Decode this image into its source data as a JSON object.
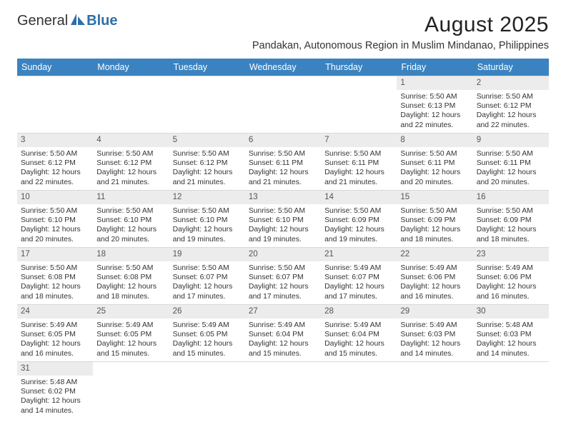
{
  "brand": {
    "part1": "General",
    "part2": "Blue"
  },
  "title": "August 2025",
  "subtitle": "Pandakan, Autonomous Region in Muslim Mindanao, Philippines",
  "colors": {
    "header_bg": "#3b83c0",
    "header_text": "#ffffff",
    "daynum_bg": "#ececec",
    "border": "#d9d9d9",
    "text": "#333333",
    "logo_blue": "#2f6fa8"
  },
  "dow": [
    "Sunday",
    "Monday",
    "Tuesday",
    "Wednesday",
    "Thursday",
    "Friday",
    "Saturday"
  ],
  "weeks": [
    [
      null,
      null,
      null,
      null,
      null,
      {
        "n": "1",
        "sr": "Sunrise: 5:50 AM",
        "ss": "Sunset: 6:13 PM",
        "d1": "Daylight: 12 hours",
        "d2": "and 22 minutes."
      },
      {
        "n": "2",
        "sr": "Sunrise: 5:50 AM",
        "ss": "Sunset: 6:12 PM",
        "d1": "Daylight: 12 hours",
        "d2": "and 22 minutes."
      }
    ],
    [
      {
        "n": "3",
        "sr": "Sunrise: 5:50 AM",
        "ss": "Sunset: 6:12 PM",
        "d1": "Daylight: 12 hours",
        "d2": "and 22 minutes."
      },
      {
        "n": "4",
        "sr": "Sunrise: 5:50 AM",
        "ss": "Sunset: 6:12 PM",
        "d1": "Daylight: 12 hours",
        "d2": "and 21 minutes."
      },
      {
        "n": "5",
        "sr": "Sunrise: 5:50 AM",
        "ss": "Sunset: 6:12 PM",
        "d1": "Daylight: 12 hours",
        "d2": "and 21 minutes."
      },
      {
        "n": "6",
        "sr": "Sunrise: 5:50 AM",
        "ss": "Sunset: 6:11 PM",
        "d1": "Daylight: 12 hours",
        "d2": "and 21 minutes."
      },
      {
        "n": "7",
        "sr": "Sunrise: 5:50 AM",
        "ss": "Sunset: 6:11 PM",
        "d1": "Daylight: 12 hours",
        "d2": "and 21 minutes."
      },
      {
        "n": "8",
        "sr": "Sunrise: 5:50 AM",
        "ss": "Sunset: 6:11 PM",
        "d1": "Daylight: 12 hours",
        "d2": "and 20 minutes."
      },
      {
        "n": "9",
        "sr": "Sunrise: 5:50 AM",
        "ss": "Sunset: 6:11 PM",
        "d1": "Daylight: 12 hours",
        "d2": "and 20 minutes."
      }
    ],
    [
      {
        "n": "10",
        "sr": "Sunrise: 5:50 AM",
        "ss": "Sunset: 6:10 PM",
        "d1": "Daylight: 12 hours",
        "d2": "and 20 minutes."
      },
      {
        "n": "11",
        "sr": "Sunrise: 5:50 AM",
        "ss": "Sunset: 6:10 PM",
        "d1": "Daylight: 12 hours",
        "d2": "and 20 minutes."
      },
      {
        "n": "12",
        "sr": "Sunrise: 5:50 AM",
        "ss": "Sunset: 6:10 PM",
        "d1": "Daylight: 12 hours",
        "d2": "and 19 minutes."
      },
      {
        "n": "13",
        "sr": "Sunrise: 5:50 AM",
        "ss": "Sunset: 6:10 PM",
        "d1": "Daylight: 12 hours",
        "d2": "and 19 minutes."
      },
      {
        "n": "14",
        "sr": "Sunrise: 5:50 AM",
        "ss": "Sunset: 6:09 PM",
        "d1": "Daylight: 12 hours",
        "d2": "and 19 minutes."
      },
      {
        "n": "15",
        "sr": "Sunrise: 5:50 AM",
        "ss": "Sunset: 6:09 PM",
        "d1": "Daylight: 12 hours",
        "d2": "and 18 minutes."
      },
      {
        "n": "16",
        "sr": "Sunrise: 5:50 AM",
        "ss": "Sunset: 6:09 PM",
        "d1": "Daylight: 12 hours",
        "d2": "and 18 minutes."
      }
    ],
    [
      {
        "n": "17",
        "sr": "Sunrise: 5:50 AM",
        "ss": "Sunset: 6:08 PM",
        "d1": "Daylight: 12 hours",
        "d2": "and 18 minutes."
      },
      {
        "n": "18",
        "sr": "Sunrise: 5:50 AM",
        "ss": "Sunset: 6:08 PM",
        "d1": "Daylight: 12 hours",
        "d2": "and 18 minutes."
      },
      {
        "n": "19",
        "sr": "Sunrise: 5:50 AM",
        "ss": "Sunset: 6:07 PM",
        "d1": "Daylight: 12 hours",
        "d2": "and 17 minutes."
      },
      {
        "n": "20",
        "sr": "Sunrise: 5:50 AM",
        "ss": "Sunset: 6:07 PM",
        "d1": "Daylight: 12 hours",
        "d2": "and 17 minutes."
      },
      {
        "n": "21",
        "sr": "Sunrise: 5:49 AM",
        "ss": "Sunset: 6:07 PM",
        "d1": "Daylight: 12 hours",
        "d2": "and 17 minutes."
      },
      {
        "n": "22",
        "sr": "Sunrise: 5:49 AM",
        "ss": "Sunset: 6:06 PM",
        "d1": "Daylight: 12 hours",
        "d2": "and 16 minutes."
      },
      {
        "n": "23",
        "sr": "Sunrise: 5:49 AM",
        "ss": "Sunset: 6:06 PM",
        "d1": "Daylight: 12 hours",
        "d2": "and 16 minutes."
      }
    ],
    [
      {
        "n": "24",
        "sr": "Sunrise: 5:49 AM",
        "ss": "Sunset: 6:05 PM",
        "d1": "Daylight: 12 hours",
        "d2": "and 16 minutes."
      },
      {
        "n": "25",
        "sr": "Sunrise: 5:49 AM",
        "ss": "Sunset: 6:05 PM",
        "d1": "Daylight: 12 hours",
        "d2": "and 15 minutes."
      },
      {
        "n": "26",
        "sr": "Sunrise: 5:49 AM",
        "ss": "Sunset: 6:05 PM",
        "d1": "Daylight: 12 hours",
        "d2": "and 15 minutes."
      },
      {
        "n": "27",
        "sr": "Sunrise: 5:49 AM",
        "ss": "Sunset: 6:04 PM",
        "d1": "Daylight: 12 hours",
        "d2": "and 15 minutes."
      },
      {
        "n": "28",
        "sr": "Sunrise: 5:49 AM",
        "ss": "Sunset: 6:04 PM",
        "d1": "Daylight: 12 hours",
        "d2": "and 15 minutes."
      },
      {
        "n": "29",
        "sr": "Sunrise: 5:49 AM",
        "ss": "Sunset: 6:03 PM",
        "d1": "Daylight: 12 hours",
        "d2": "and 14 minutes."
      },
      {
        "n": "30",
        "sr": "Sunrise: 5:48 AM",
        "ss": "Sunset: 6:03 PM",
        "d1": "Daylight: 12 hours",
        "d2": "and 14 minutes."
      }
    ],
    [
      {
        "n": "31",
        "sr": "Sunrise: 5:48 AM",
        "ss": "Sunset: 6:02 PM",
        "d1": "Daylight: 12 hours",
        "d2": "and 14 minutes."
      },
      null,
      null,
      null,
      null,
      null,
      null
    ]
  ]
}
